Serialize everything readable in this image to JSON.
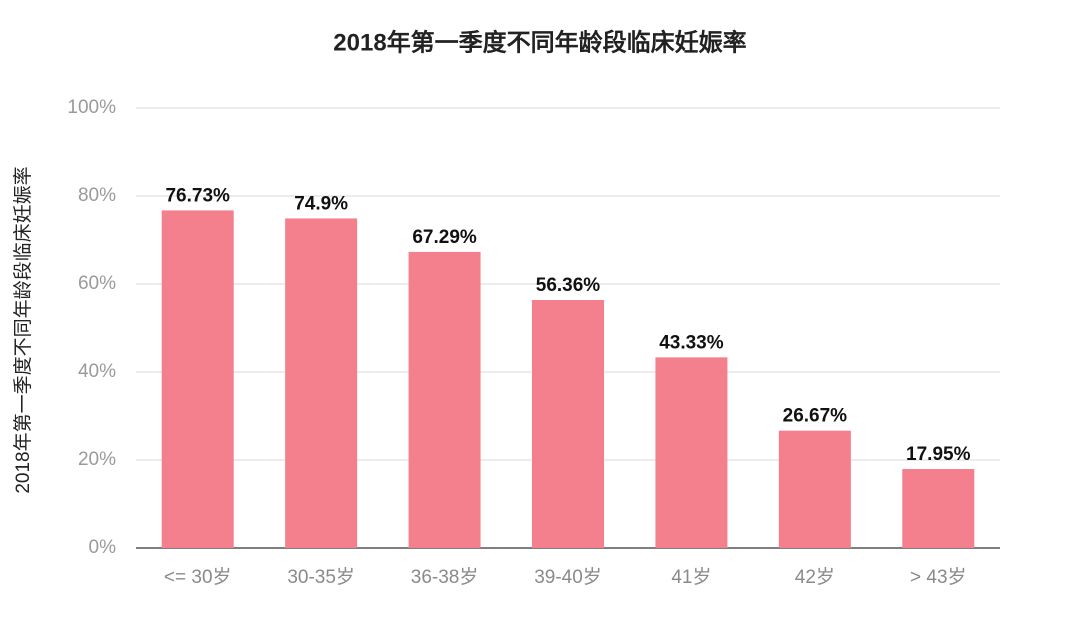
{
  "chart_data": {
    "type": "bar",
    "title": "2018年第一季度不同年龄段临床妊娠率",
    "y_label": "2018年第一季度不同年龄段临床妊娠率",
    "categories": [
      "<= 30岁",
      "30-35岁",
      "36-38岁",
      "39-40岁",
      "41岁",
      "42岁",
      "> 43岁"
    ],
    "values": [
      76.73,
      74.9,
      67.29,
      56.36,
      43.33,
      26.67,
      17.95
    ],
    "value_labels": [
      "76.73%",
      "74.9%",
      "67.29%",
      "56.36%",
      "43.33%",
      "26.67%",
      "17.95%"
    ],
    "color": "#f4808d",
    "ylim": [
      0,
      100
    ],
    "yticks": [
      {
        "value": 0,
        "label": "0%"
      },
      {
        "value": 20,
        "label": "20%"
      },
      {
        "value": 40,
        "label": "40%"
      },
      {
        "value": 60,
        "label": "60%"
      },
      {
        "value": 80,
        "label": "80%"
      },
      {
        "value": 100,
        "label": "100%"
      }
    ],
    "grid": true
  }
}
